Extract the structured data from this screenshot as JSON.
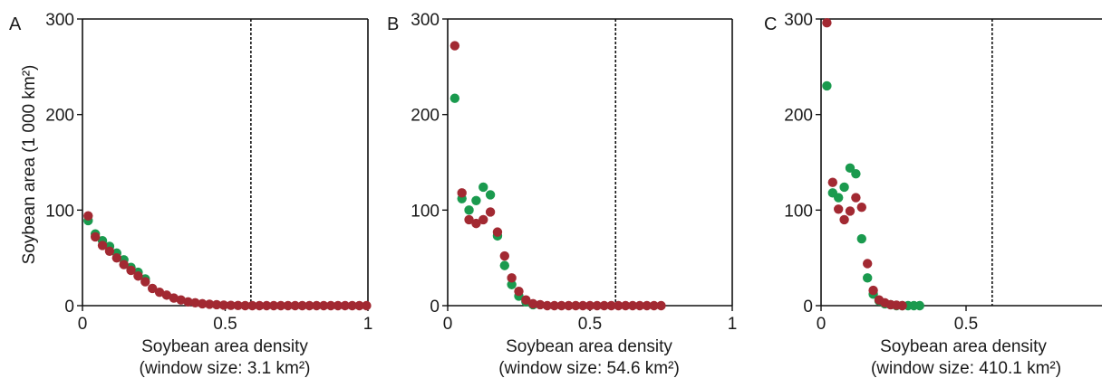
{
  "colors": {
    "green": "#1a9a4e",
    "red": "#a22932",
    "axis": "#111111"
  },
  "chart_data": [
    {
      "type": "scatter",
      "panel_label": "A",
      "xlabel": "Soybean area density",
      "xlabel_sub": "(window size: 3.1 km²)",
      "ylabel": "Soybean area (1 000 km²)",
      "xlim": [
        0,
        1
      ],
      "ylim": [
        0,
        300
      ],
      "xticks": [
        {
          "v": 0,
          "label": "0"
        },
        {
          "v": 0.5,
          "label": "0.5"
        },
        {
          "v": 1,
          "label": "1"
        }
      ],
      "yticks": [
        {
          "v": 0,
          "label": "0"
        },
        {
          "v": 100,
          "label": "100"
        },
        {
          "v": 200,
          "label": "200"
        },
        {
          "v": 300,
          "label": "300"
        }
      ],
      "reference_line_x": 0.59,
      "series": [
        {
          "color": "#1a9a4e",
          "points": [
            [
              0.02,
              89
            ],
            [
              0.045,
              75
            ],
            [
              0.07,
              68
            ],
            [
              0.095,
              62
            ],
            [
              0.12,
              55
            ],
            [
              0.145,
              48
            ],
            [
              0.17,
              40
            ],
            [
              0.195,
              35
            ],
            [
              0.22,
              28
            ]
          ]
        },
        {
          "color": "#a22932",
          "points": [
            [
              0.02,
              94
            ],
            [
              0.045,
              72
            ],
            [
              0.07,
              63
            ],
            [
              0.095,
              57
            ],
            [
              0.12,
              50
            ],
            [
              0.145,
              43
            ],
            [
              0.17,
              37
            ],
            [
              0.195,
              31
            ],
            [
              0.22,
              25
            ],
            [
              0.245,
              18
            ],
            [
              0.27,
              14
            ],
            [
              0.295,
              11
            ],
            [
              0.32,
              8
            ],
            [
              0.345,
              6
            ],
            [
              0.37,
              4
            ],
            [
              0.395,
              3
            ],
            [
              0.42,
              2
            ],
            [
              0.445,
              1.5
            ],
            [
              0.47,
              1
            ],
            [
              0.495,
              0.5
            ],
            [
              0.52,
              0.3
            ],
            [
              0.545,
              0.2
            ],
            [
              0.57,
              0
            ],
            [
              0.595,
              0
            ],
            [
              0.62,
              0
            ],
            [
              0.645,
              0
            ],
            [
              0.67,
              0
            ],
            [
              0.695,
              0
            ],
            [
              0.72,
              0
            ],
            [
              0.745,
              0
            ],
            [
              0.77,
              0
            ],
            [
              0.795,
              0
            ],
            [
              0.82,
              0
            ],
            [
              0.845,
              0
            ],
            [
              0.87,
              0
            ],
            [
              0.895,
              0
            ],
            [
              0.92,
              0
            ],
            [
              0.945,
              0
            ],
            [
              0.97,
              0
            ],
            [
              0.995,
              0
            ]
          ]
        }
      ]
    },
    {
      "type": "scatter",
      "panel_label": "B",
      "xlabel": "Soybean area density",
      "xlabel_sub": "(window size: 54.6 km²)",
      "ylabel": "",
      "xlim": [
        0,
        1
      ],
      "ylim": [
        0,
        300
      ],
      "xticks": [
        {
          "v": 0,
          "label": "0"
        },
        {
          "v": 0.5,
          "label": "0.5"
        },
        {
          "v": 1,
          "label": "1"
        }
      ],
      "yticks": [
        {
          "v": 0,
          "label": "0"
        },
        {
          "v": 100,
          "label": "100"
        },
        {
          "v": 200,
          "label": "200"
        },
        {
          "v": 300,
          "label": "300"
        }
      ],
      "reference_line_x": 0.59,
      "series": [
        {
          "color": "#1a9a4e",
          "points": [
            [
              0.025,
              217
            ],
            [
              0.05,
              112
            ],
            [
              0.075,
              100
            ],
            [
              0.1,
              110
            ],
            [
              0.125,
              124
            ],
            [
              0.15,
              116
            ],
            [
              0.175,
              73
            ],
            [
              0.2,
              42
            ],
            [
              0.225,
              22
            ],
            [
              0.25,
              10
            ],
            [
              0.275,
              4
            ],
            [
              0.3,
              1
            ]
          ]
        },
        {
          "color": "#a22932",
          "points": [
            [
              0.025,
              272
            ],
            [
              0.05,
              118
            ],
            [
              0.075,
              90
            ],
            [
              0.1,
              86
            ],
            [
              0.125,
              90
            ],
            [
              0.15,
              98
            ],
            [
              0.175,
              77
            ],
            [
              0.2,
              52
            ],
            [
              0.225,
              29
            ],
            [
              0.25,
              15
            ],
            [
              0.275,
              6
            ],
            [
              0.3,
              2
            ],
            [
              0.325,
              1
            ],
            [
              0.35,
              0
            ],
            [
              0.375,
              0
            ],
            [
              0.4,
              0
            ],
            [
              0.425,
              0
            ],
            [
              0.45,
              0
            ],
            [
              0.475,
              0
            ],
            [
              0.5,
              0
            ],
            [
              0.525,
              0
            ],
            [
              0.55,
              0
            ],
            [
              0.575,
              0
            ],
            [
              0.6,
              0
            ],
            [
              0.625,
              0
            ],
            [
              0.65,
              0
            ],
            [
              0.675,
              0
            ],
            [
              0.7,
              0
            ],
            [
              0.725,
              0
            ],
            [
              0.75,
              0
            ]
          ]
        }
      ]
    },
    {
      "type": "scatter",
      "panel_label": "C",
      "xlabel": "Soybean area density",
      "xlabel_sub": "(window size: 410.1 km²)",
      "ylabel": "",
      "xlim": [
        0,
        1
      ],
      "ylim": [
        0,
        300
      ],
      "xticks": [
        {
          "v": 0,
          "label": "0"
        },
        {
          "v": 0.5,
          "label": "0.5"
        }
      ],
      "yticks": [
        {
          "v": 0,
          "label": "0"
        },
        {
          "v": 100,
          "label": "100"
        },
        {
          "v": 200,
          "label": "200"
        },
        {
          "v": 300,
          "label": "300"
        }
      ],
      "reference_line_x": 0.59,
      "series": [
        {
          "color": "#1a9a4e",
          "points": [
            [
              0.02,
              230
            ],
            [
              0.04,
              118
            ],
            [
              0.06,
              113
            ],
            [
              0.08,
              124
            ],
            [
              0.1,
              144
            ],
            [
              0.12,
              138
            ],
            [
              0.14,
              70
            ],
            [
              0.16,
              29
            ],
            [
              0.18,
              12
            ],
            [
              0.2,
              5
            ],
            [
              0.22,
              2
            ],
            [
              0.24,
              1
            ],
            [
              0.26,
              0
            ],
            [
              0.28,
              0
            ],
            [
              0.3,
              0
            ],
            [
              0.32,
              0
            ],
            [
              0.34,
              0
            ]
          ]
        },
        {
          "color": "#a22932",
          "points": [
            [
              0.02,
              296
            ],
            [
              0.04,
              129
            ],
            [
              0.06,
              101
            ],
            [
              0.08,
              90
            ],
            [
              0.1,
              99
            ],
            [
              0.12,
              113
            ],
            [
              0.14,
              103
            ],
            [
              0.16,
              44
            ],
            [
              0.18,
              16
            ],
            [
              0.2,
              6
            ],
            [
              0.22,
              3
            ],
            [
              0.24,
              1
            ],
            [
              0.26,
              0.5
            ],
            [
              0.28,
              0
            ]
          ]
        }
      ]
    }
  ]
}
